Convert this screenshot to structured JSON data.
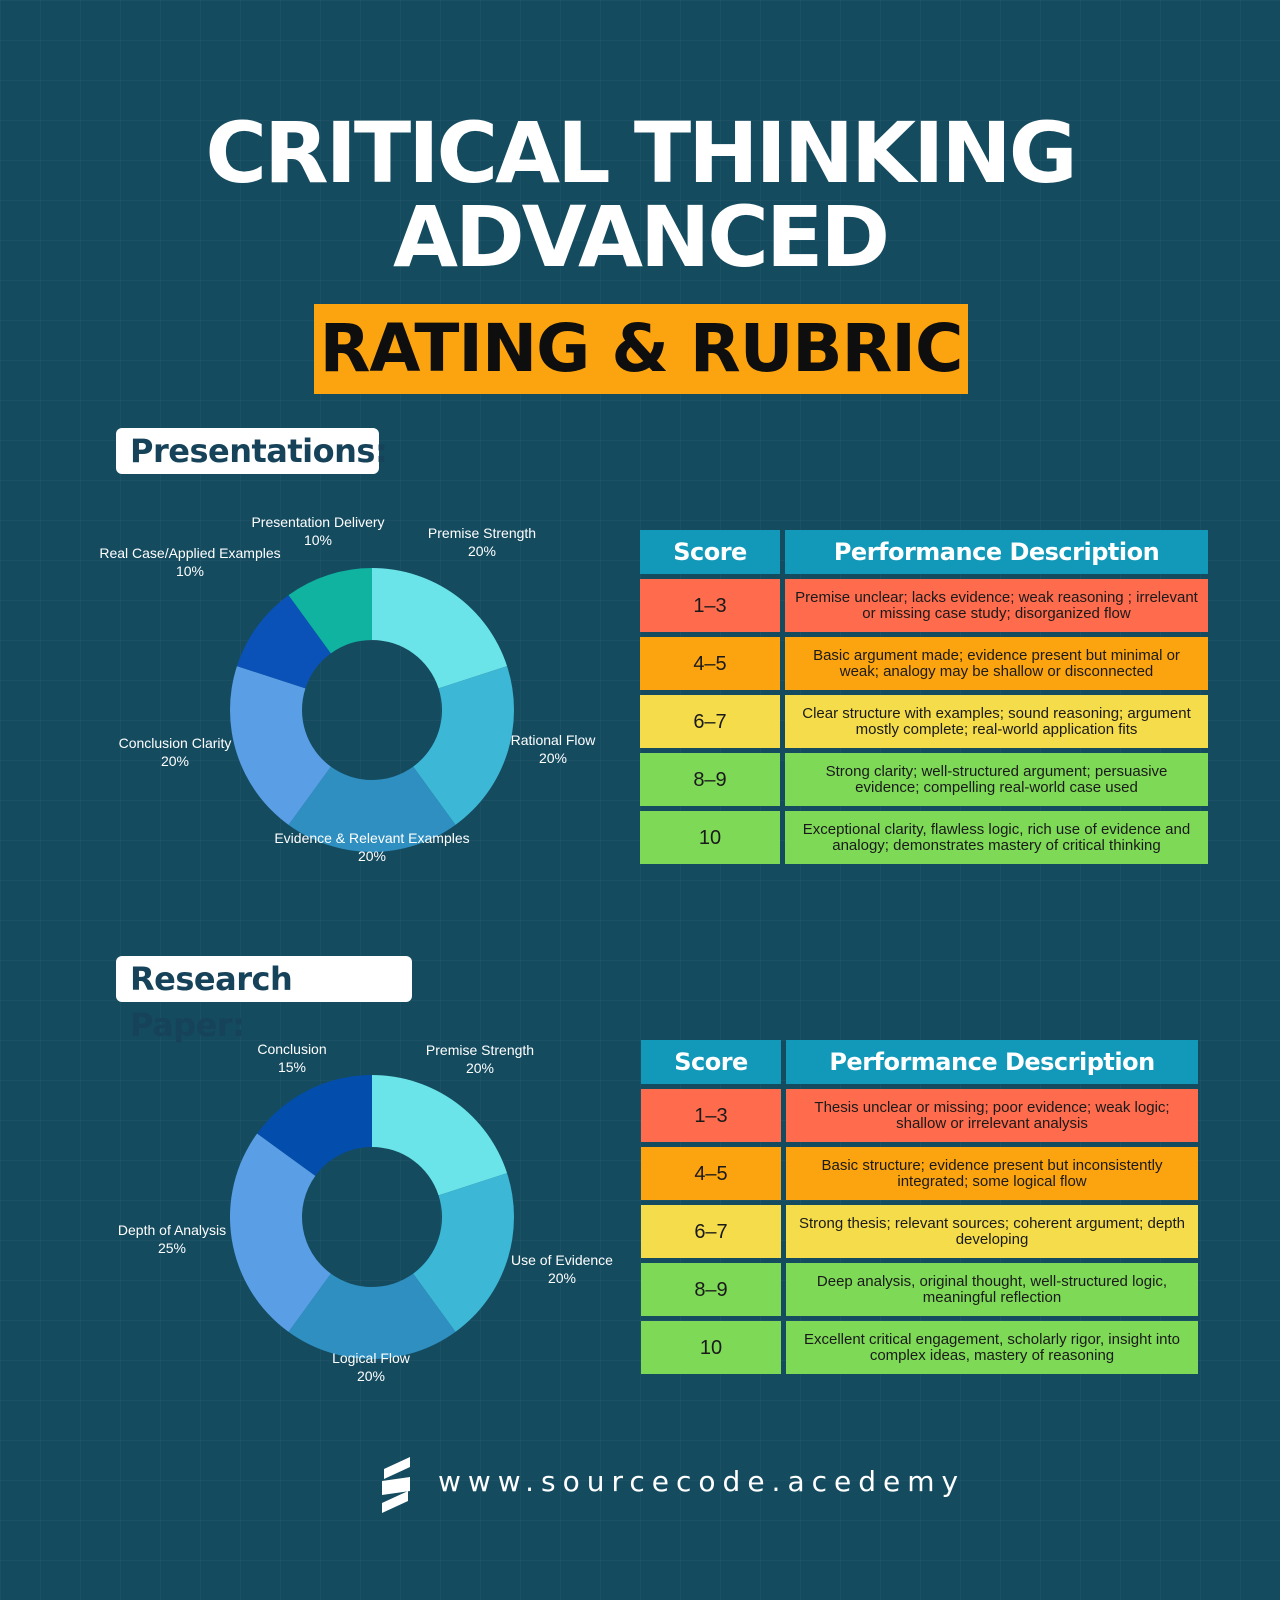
{
  "header": {
    "title_line1": "CRITICAL THINKING",
    "title_line2": "ADVANCED",
    "banner": "RATING & RUBRIC",
    "banner_color": "#fca40f"
  },
  "presentations": {
    "label": "Presentations:",
    "table": {
      "headers": [
        "Score",
        "Performance Description"
      ],
      "rows": [
        {
          "score": "1–3",
          "description": "Premise unclear; lacks evidence; weak reasoning ; irrelevant or missing case study; disorganized flow"
        },
        {
          "score": "4–5",
          "description": "Basic argument made; evidence present but minimal or weak; analogy may be shallow or disconnected"
        },
        {
          "score": "6–7",
          "description": "Clear structure with examples; sound reasoning; argument mostly complete; real-world application fits"
        },
        {
          "score": "8–9",
          "description": "Strong clarity; well-structured argument; persuasive evidence; compelling real-world case used"
        },
        {
          "score": "10",
          "description": "Exceptional clarity, flawless logic, rich use of evidence and analogy; demonstrates mastery of critical thinking"
        }
      ]
    }
  },
  "research": {
    "label": "Research Paper:",
    "table": {
      "headers": [
        "Score",
        "Performance Description"
      ],
      "rows": [
        {
          "score": "1–3",
          "description": "Thesis unclear or missing; poor evidence; weak logic; shallow or irrelevant analysis"
        },
        {
          "score": "4–5",
          "description": "Basic structure; evidence present but inconsistently integrated; some logical flow"
        },
        {
          "score": "6–7",
          "description": "Strong thesis; relevant sources; coherent argument; depth developing"
        },
        {
          "score": "8–9",
          "description": "Deep analysis, original thought, well-structured logic, meaningful reflection"
        },
        {
          "score": "10",
          "description": "Excellent critical engagement, scholarly rigor, insight into complex ideas, mastery of reasoning"
        }
      ]
    }
  },
  "score_colors": [
    "#fe6b4d",
    "#fca40f",
    "#f4dc4a",
    "#7ed957",
    "#7ed957"
  ],
  "chart_data": [
    {
      "type": "pie",
      "donut": true,
      "categories": [
        "Premise Strength",
        "Rational Flow",
        "Evidence & Relevant Examples",
        "Conclusion Clarity",
        "Real Case/Applied Examples",
        "Presentation Delivery"
      ],
      "values": [
        20,
        20,
        20,
        20,
        10,
        10
      ],
      "value_labels": [
        "20%",
        "20%",
        "20%",
        "20%",
        "10%",
        "10%"
      ],
      "colors": [
        "#6ae4e8",
        "#3db7d6",
        "#2e8fc0",
        "#5a9fe6",
        "#0a52b8",
        "#10b2a0"
      ]
    },
    {
      "type": "pie",
      "donut": true,
      "categories": [
        "Premise Strength",
        "Use of Evidence",
        "Logical Flow",
        "Depth of Analysis",
        "Conclusion"
      ],
      "values": [
        20,
        20,
        20,
        25,
        15
      ],
      "value_labels": [
        "20%",
        "20%",
        "20%",
        "25%",
        "15%"
      ],
      "colors": [
        "#6ae4e8",
        "#3db7d6",
        "#2e8fc0",
        "#5a9fe6",
        "#034dad"
      ]
    }
  ],
  "footer": {
    "url": "www.sourcecode.acedemy",
    "logo_icon": "s-logo-icon"
  }
}
